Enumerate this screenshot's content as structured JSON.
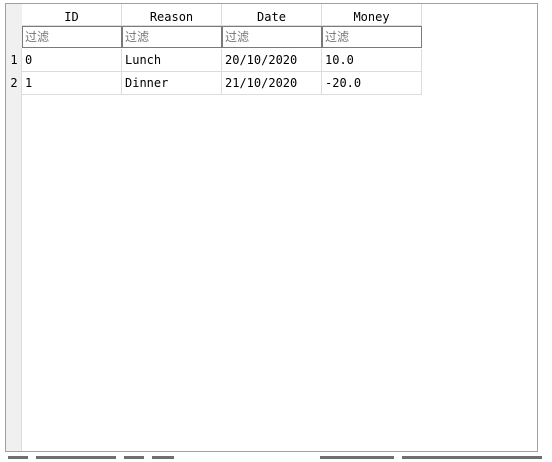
{
  "table": {
    "columns": [
      {
        "label": "ID",
        "sorted": "ascending"
      },
      {
        "label": "Reason"
      },
      {
        "label": "Date"
      },
      {
        "label": "Money"
      }
    ],
    "filter_placeholder": "过滤",
    "rows": [
      {
        "num": "1",
        "cells": [
          "0",
          "Lunch",
          "20/10/2020",
          "10.0"
        ]
      },
      {
        "num": "2",
        "cells": [
          "1",
          "Dinner",
          "21/10/2020",
          "-20.0"
        ]
      }
    ],
    "sort_indicator": "^"
  }
}
